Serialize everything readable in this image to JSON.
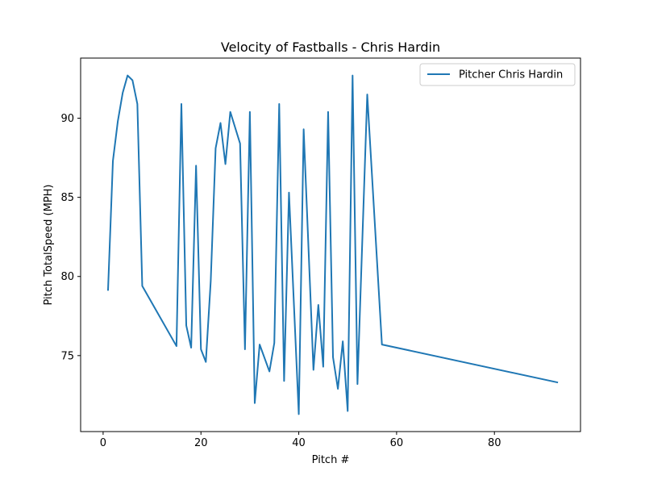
{
  "chart_data": {
    "type": "line",
    "title": "Velocity of Fastballs - Chris Hardin",
    "xlabel": "Pitch #",
    "ylabel": "Pitch TotalSpeed (MPH)",
    "xlim": [
      -4.6,
      97.6
    ],
    "ylim": [
      70.2,
      93.8
    ],
    "xticks": [
      0,
      20,
      40,
      60,
      80
    ],
    "yticks": [
      75,
      80,
      85,
      90
    ],
    "grid": false,
    "legend_position": "top-right",
    "line_color": "#1f77b4",
    "series": [
      {
        "name": "Pitcher Chris Hardin",
        "x": [
          1,
          2,
          3,
          4,
          5,
          6,
          7,
          8,
          15,
          16,
          17,
          18,
          19,
          20,
          21,
          22,
          23,
          24,
          25,
          26,
          28,
          29,
          30,
          31,
          32,
          34,
          35,
          36,
          37,
          38,
          40,
          41,
          43,
          44,
          45,
          46,
          47,
          48,
          49,
          50,
          51,
          52,
          54,
          57,
          93
        ],
        "y": [
          79.1,
          87.3,
          89.8,
          91.6,
          92.7,
          92.4,
          90.9,
          79.4,
          75.6,
          90.9,
          76.9,
          75.5,
          87.0,
          75.4,
          74.6,
          79.7,
          88.1,
          89.7,
          87.1,
          90.4,
          88.4,
          75.4,
          90.4,
          72.0,
          75.7,
          74.0,
          75.8,
          90.9,
          73.4,
          85.3,
          71.3,
          89.3,
          74.1,
          78.2,
          74.3,
          90.4,
          74.9,
          72.9,
          75.9,
          71.5,
          92.7,
          73.2,
          91.5,
          75.7,
          73.3
        ]
      }
    ]
  }
}
